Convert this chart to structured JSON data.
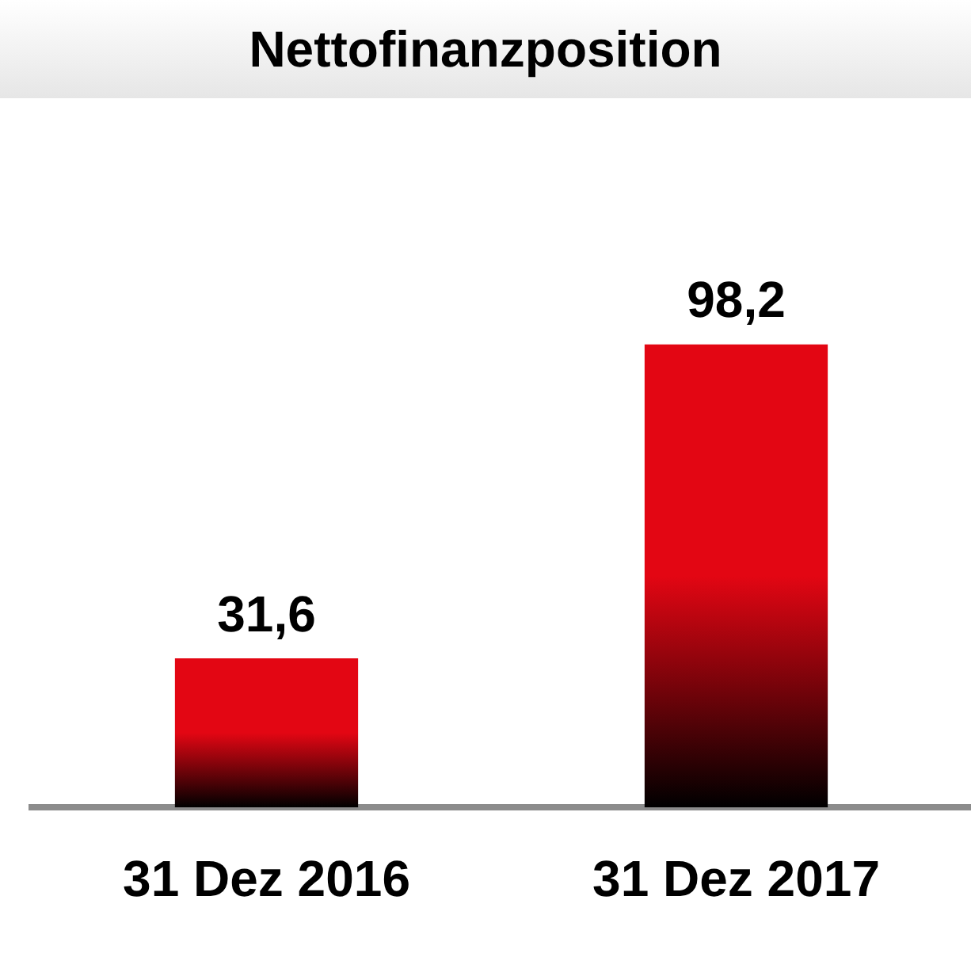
{
  "chart_data": {
    "type": "bar",
    "title": "Nettofinanzposition",
    "categories": [
      "31 Dez 2016",
      "31 Dez 2017"
    ],
    "values": [
      31.6,
      98.2
    ],
    "color": "#e30613",
    "value_labels": [
      "31,6",
      "98,2"
    ],
    "grid": false,
    "legend": false
  }
}
